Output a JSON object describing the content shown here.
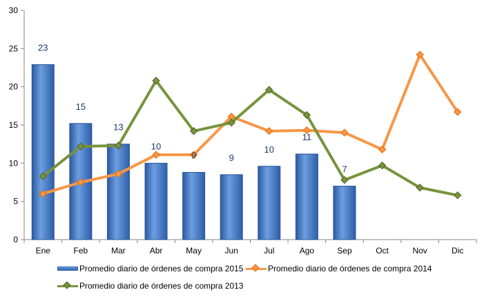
{
  "chart_data": {
    "type": "bar",
    "categories": [
      "Ene",
      "Feb",
      "Mar",
      "Abr",
      "May",
      "Jun",
      "Jul",
      "Ago",
      "Sep",
      "Oct",
      "Nov",
      "Dic"
    ],
    "ylim": [
      0,
      30
    ],
    "yticks": [
      0,
      5,
      10,
      15,
      20,
      25,
      30
    ],
    "grid": false,
    "legend_position": "bottom",
    "series": [
      {
        "name": "Promedio diario de órdenes de compra 2015",
        "type": "bar",
        "color": "#4F81BD",
        "values": [
          22.9,
          15.2,
          12.5,
          10.0,
          8.8,
          8.5,
          9.6,
          11.2,
          7.0,
          null,
          null,
          null
        ],
        "labels": [
          "23",
          "15",
          "13",
          "10",
          "9",
          "9",
          "10",
          "11",
          "7",
          null,
          null,
          null
        ]
      },
      {
        "name": "Promedio diario de órdenes de compra 2014",
        "type": "line",
        "color": "#F79646",
        "values": [
          6.0,
          7.5,
          8.6,
          11.1,
          11.1,
          16.1,
          14.2,
          14.3,
          14.0,
          11.8,
          24.2,
          16.7
        ]
      },
      {
        "name": "Promedio diario de órdenes de compra 2013",
        "type": "line",
        "color": "#77933C",
        "values": [
          8.3,
          12.2,
          12.3,
          20.8,
          14.2,
          15.3,
          19.6,
          16.3,
          7.8,
          9.7,
          6.8,
          5.8
        ]
      }
    ]
  }
}
